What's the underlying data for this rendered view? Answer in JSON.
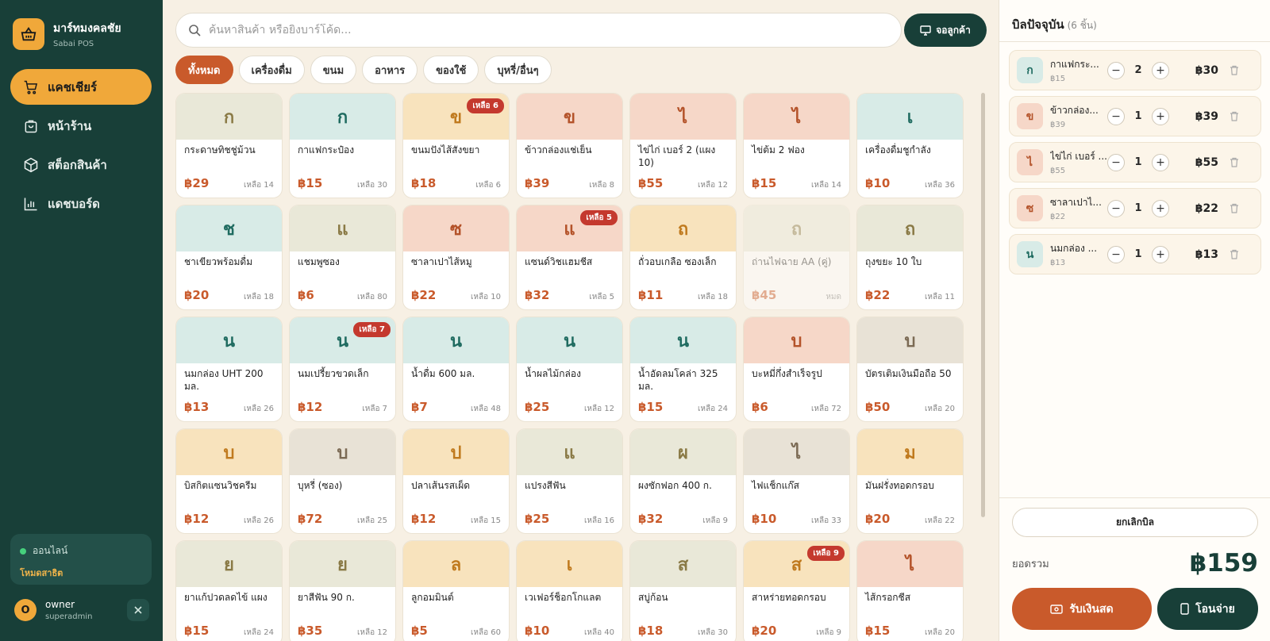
{
  "brand": {
    "title": "มาร์ทมงคลชัย",
    "subtitle": "Sabai POS"
  },
  "nav": [
    {
      "label": "แคชเชียร์",
      "icon": "cart-icon",
      "active": true
    },
    {
      "label": "หน้าร้าน",
      "icon": "store-icon",
      "active": false
    },
    {
      "label": "สต็อกสินค้า",
      "icon": "box-icon",
      "active": false
    },
    {
      "label": "แดชบอร์ด",
      "icon": "chart-icon",
      "active": false
    }
  ],
  "status": {
    "label": "ออนไลน์",
    "mode": "โหมดสาธิต"
  },
  "user": {
    "initial": "O",
    "name": "owner",
    "role": "superadmin"
  },
  "search": {
    "placeholder": "ค้นหาสินค้า หรือยิงบาร์โค้ด..."
  },
  "screen_button": "จอลูกค้า",
  "categories": [
    {
      "label": "ทั้งหมด",
      "active": true
    },
    {
      "label": "เครื่องดื่ม",
      "active": false
    },
    {
      "label": "ขนม",
      "active": false
    },
    {
      "label": "อาหาร",
      "active": false
    },
    {
      "label": "ของใช้",
      "active": false
    },
    {
      "label": "บุหรี่/อื่นๆ",
      "active": false
    }
  ],
  "colors": {
    "sage": [
      "#e9e8d8",
      "#8a7a46"
    ],
    "teal": [
      "#d8ebe7",
      "#1f6b60"
    ],
    "amber": [
      "#f8e3bd",
      "#c07a1e"
    ],
    "salmon": [
      "#f6d7c8",
      "#b4532a"
    ],
    "gray": [
      "#e8e2d6",
      "#7b6a54"
    ]
  },
  "products": [
    {
      "initial": "ก",
      "name": "กระดาษทิชชู่ม้วน",
      "price": "฿29",
      "stock": "เหลือ 14",
      "color": "sage"
    },
    {
      "initial": "ก",
      "name": "กาแฟกระป๋อง",
      "price": "฿15",
      "stock": "เหลือ 30",
      "color": "teal"
    },
    {
      "initial": "ข",
      "name": "ขนมปังไส้สังขยา",
      "price": "฿18",
      "stock": "เหลือ 6",
      "color": "amber",
      "badge": "เหลือ 6"
    },
    {
      "initial": "ข",
      "name": "ข้าวกล่องแช่เย็น",
      "price": "฿39",
      "stock": "เหลือ 8",
      "color": "salmon"
    },
    {
      "initial": "ไ",
      "name": "ไข่ไก่ เบอร์ 2 (แผง 10)",
      "price": "฿55",
      "stock": "เหลือ 12",
      "color": "salmon"
    },
    {
      "initial": "ไ",
      "name": "ไข่ต้ม 2 ฟอง",
      "price": "฿15",
      "stock": "เหลือ 14",
      "color": "salmon"
    },
    {
      "initial": "เ",
      "name": "เครื่องดื่มชูกำลัง",
      "price": "฿10",
      "stock": "เหลือ 36",
      "color": "teal"
    },
    {
      "initial": "ช",
      "name": "ชาเขียวพร้อมดื่ม",
      "price": "฿20",
      "stock": "เหลือ 18",
      "color": "teal"
    },
    {
      "initial": "แ",
      "name": "แชมพูซอง",
      "price": "฿6",
      "stock": "เหลือ 80",
      "color": "sage"
    },
    {
      "initial": "ซ",
      "name": "ซาลาเปาไส้หมู",
      "price": "฿22",
      "stock": "เหลือ 10",
      "color": "salmon"
    },
    {
      "initial": "แ",
      "name": "แซนด์วิชแฮมชีส",
      "price": "฿32",
      "stock": "เหลือ 5",
      "color": "salmon",
      "badge": "เหลือ 5"
    },
    {
      "initial": "ถ",
      "name": "ถั่วอบเกลือ ซองเล็ก",
      "price": "฿11",
      "stock": "เหลือ 18",
      "color": "amber"
    },
    {
      "initial": "ถ",
      "name": "ถ่านไฟฉาย AA (คู่)",
      "price": "฿45",
      "stock": "หมด",
      "color": "sage",
      "disabled": true
    },
    {
      "initial": "ถ",
      "name": "ถุงขยะ 10 ใบ",
      "price": "฿22",
      "stock": "เหลือ 11",
      "color": "sage"
    },
    {
      "initial": "น",
      "name": "นมกล่อง UHT 200 มล.",
      "price": "฿13",
      "stock": "เหลือ 26",
      "color": "teal"
    },
    {
      "initial": "น",
      "name": "นมเปรี้ยวขวดเล็ก",
      "price": "฿12",
      "stock": "เหลือ 7",
      "color": "teal",
      "badge": "เหลือ 7"
    },
    {
      "initial": "น",
      "name": "น้ำดื่ม 600 มล.",
      "price": "฿7",
      "stock": "เหลือ 48",
      "color": "teal"
    },
    {
      "initial": "น",
      "name": "น้ำผลไม้กล่อง",
      "price": "฿25",
      "stock": "เหลือ 12",
      "color": "teal"
    },
    {
      "initial": "น",
      "name": "น้ำอัดลมโคล่า 325 มล.",
      "price": "฿15",
      "stock": "เหลือ 24",
      "color": "teal"
    },
    {
      "initial": "บ",
      "name": "บะหมี่กึ่งสำเร็จรูป",
      "price": "฿6",
      "stock": "เหลือ 72",
      "color": "salmon"
    },
    {
      "initial": "บ",
      "name": "บัตรเติมเงินมือถือ 50",
      "price": "฿50",
      "stock": "เหลือ 20",
      "color": "gray"
    },
    {
      "initial": "บ",
      "name": "บิสกิตแซนวิชครีม",
      "price": "฿12",
      "stock": "เหลือ 26",
      "color": "amber"
    },
    {
      "initial": "บ",
      "name": "บุหรี่ (ซอง)",
      "price": "฿72",
      "stock": "เหลือ 25",
      "color": "gray"
    },
    {
      "initial": "ป",
      "name": "ปลาเส้นรสเผ็ด",
      "price": "฿12",
      "stock": "เหลือ 15",
      "color": "amber"
    },
    {
      "initial": "แ",
      "name": "แปรงสีฟัน",
      "price": "฿25",
      "stock": "เหลือ 16",
      "color": "sage"
    },
    {
      "initial": "ผ",
      "name": "ผงซักฟอก 400 ก.",
      "price": "฿32",
      "stock": "เหลือ 9",
      "color": "sage"
    },
    {
      "initial": "ไ",
      "name": "ไฟแช็กแก๊ส",
      "price": "฿10",
      "stock": "เหลือ 33",
      "color": "gray"
    },
    {
      "initial": "ม",
      "name": "มันฝรั่งทอดกรอบ",
      "price": "฿20",
      "stock": "เหลือ 22",
      "color": "amber"
    },
    {
      "initial": "ย",
      "name": "ยาแก้ปวดลดไข้ แผง",
      "price": "฿15",
      "stock": "เหลือ 24",
      "color": "sage"
    },
    {
      "initial": "ย",
      "name": "ยาสีฟัน 90 ก.",
      "price": "฿35",
      "stock": "เหลือ 12",
      "color": "sage"
    },
    {
      "initial": "ล",
      "name": "ลูกอมมินต์",
      "price": "฿5",
      "stock": "เหลือ 60",
      "color": "amber"
    },
    {
      "initial": "เ",
      "name": "เวเฟอร์ช็อกโกแลต",
      "price": "฿10",
      "stock": "เหลือ 40",
      "color": "amber"
    },
    {
      "initial": "ส",
      "name": "สบู่ก้อน",
      "price": "฿18",
      "stock": "เหลือ 30",
      "color": "sage"
    },
    {
      "initial": "ส",
      "name": "สาหร่ายทอดกรอบ",
      "price": "฿20",
      "stock": "เหลือ 9",
      "color": "amber",
      "badge": "เหลือ 9"
    },
    {
      "initial": "ไ",
      "name": "ไส้กรอกชีส",
      "price": "฿15",
      "stock": "เหลือ 20",
      "color": "salmon"
    }
  ],
  "cart": {
    "title": "บิลปัจจุบัน",
    "count": "(6 ชิ้น)",
    "items": [
      {
        "initial": "ก",
        "name": "กาแฟกระ...",
        "unit": "฿15",
        "qty": "2",
        "total": "฿30",
        "color": "teal"
      },
      {
        "initial": "ข",
        "name": "ข้าวกล่อง...",
        "unit": "฿39",
        "qty": "1",
        "total": "฿39",
        "color": "salmon"
      },
      {
        "initial": "ไ",
        "name": "ไข่ไก่ เบอร์ ...",
        "unit": "฿55",
        "qty": "1",
        "total": "฿55",
        "color": "salmon"
      },
      {
        "initial": "ซ",
        "name": "ซาลาเปาไ...",
        "unit": "฿22",
        "qty": "1",
        "total": "฿22",
        "color": "salmon"
      },
      {
        "initial": "น",
        "name": "นมกล่อง ...",
        "unit": "฿13",
        "qty": "1",
        "total": "฿13",
        "color": "teal"
      }
    ],
    "cancel_label": "ยกเลิกบิล",
    "total_label": "ยอดรวม",
    "total_value": "฿159",
    "cash_label": "รับเงินสด",
    "transfer_label": "โอนจ่าย"
  }
}
